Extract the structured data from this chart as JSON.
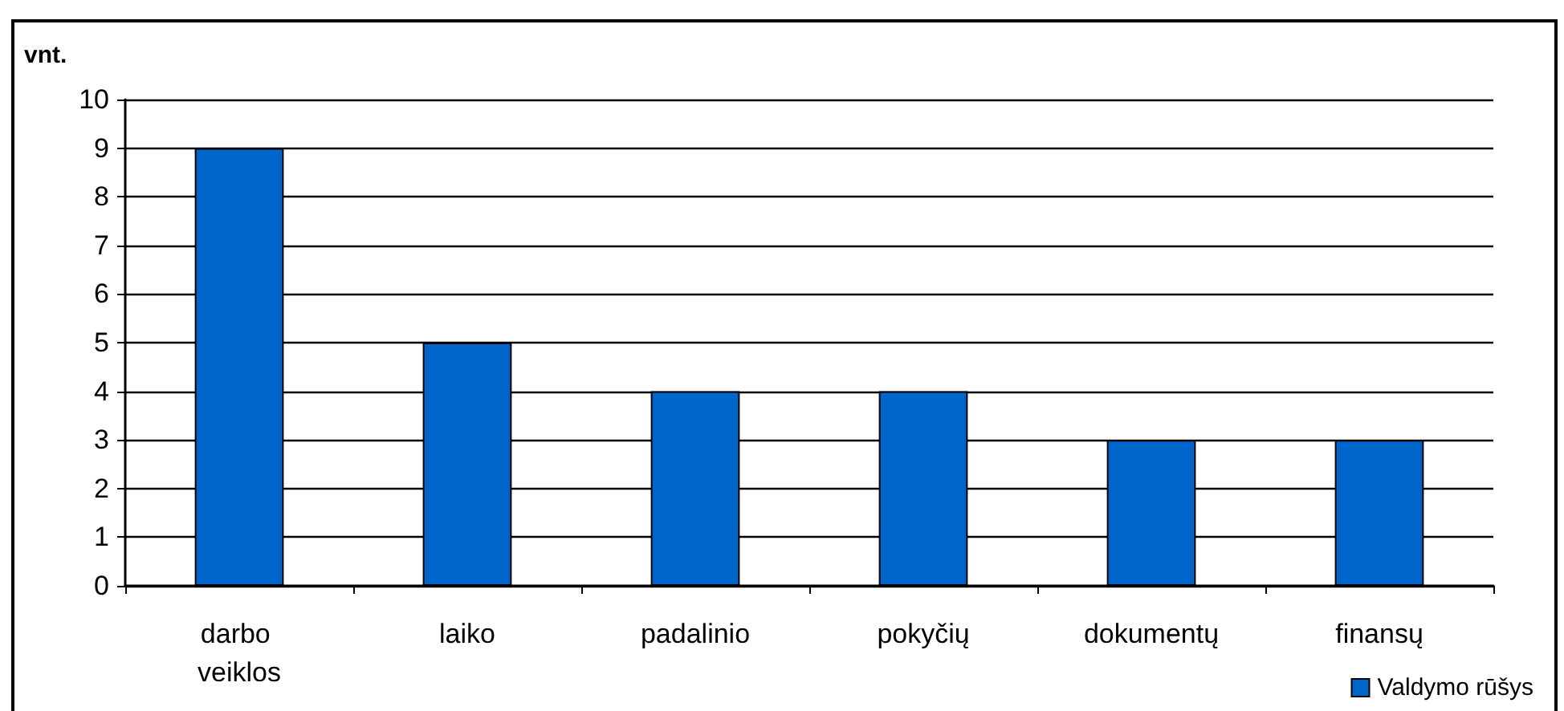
{
  "chart_data": {
    "type": "bar",
    "ylabel": "vnt.",
    "categories": [
      "darbo veiklos",
      "laiko",
      "padalinio",
      "pokyčių",
      "dokumentų",
      "finansų"
    ],
    "series": [
      {
        "name": "Valdymo rūšys",
        "color": "#0066cc",
        "values": [
          9,
          5,
          4,
          4,
          3,
          3
        ]
      }
    ],
    "ylim": [
      0,
      10
    ],
    "yticks": [
      0,
      1,
      2,
      3,
      4,
      5,
      6,
      7,
      8,
      9,
      10
    ],
    "grid": "y",
    "legend": "bottom right"
  }
}
